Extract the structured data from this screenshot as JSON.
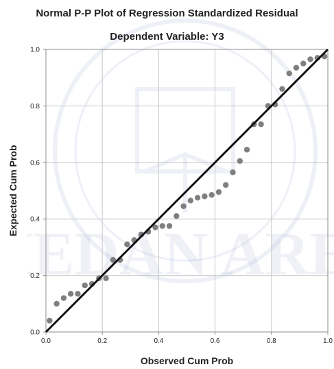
{
  "chart_data": {
    "type": "scatter",
    "title": "Normal P-P Plot of Regression Standardized Residual",
    "subtitle": "Dependent Variable: Y3",
    "xlabel": "Observed Cum Prob",
    "ylabel": "Expected Cum Prob",
    "xlim": [
      0,
      1
    ],
    "ylim": [
      0,
      1
    ],
    "x_ticks": [
      "0.0",
      "0.2",
      "0.4",
      "0.6",
      "0.8",
      "1.0"
    ],
    "y_ticks": [
      "0.0",
      "0.2",
      "0.4",
      "0.6",
      "0.8",
      "1.0"
    ],
    "grid": true,
    "legend": "none",
    "reference_line": {
      "from": [
        0,
        0
      ],
      "to": [
        1,
        1
      ]
    },
    "points": {
      "x": [
        0.013,
        0.038,
        0.063,
        0.088,
        0.113,
        0.138,
        0.163,
        0.188,
        0.213,
        0.238,
        0.263,
        0.288,
        0.313,
        0.338,
        0.363,
        0.388,
        0.413,
        0.438,
        0.463,
        0.488,
        0.513,
        0.538,
        0.563,
        0.588,
        0.613,
        0.638,
        0.663,
        0.688,
        0.713,
        0.738,
        0.763,
        0.788,
        0.813,
        0.838,
        0.863,
        0.888,
        0.913,
        0.938,
        0.963,
        0.988
      ],
      "y": [
        0.04,
        0.1,
        0.12,
        0.135,
        0.135,
        0.165,
        0.17,
        0.19,
        0.19,
        0.255,
        0.255,
        0.31,
        0.325,
        0.345,
        0.355,
        0.37,
        0.375,
        0.375,
        0.41,
        0.445,
        0.465,
        0.475,
        0.48,
        0.485,
        0.495,
        0.52,
        0.565,
        0.605,
        0.645,
        0.735,
        0.735,
        0.8,
        0.805,
        0.86,
        0.915,
        0.935,
        0.95,
        0.965,
        0.97,
        0.975
      ]
    },
    "colors": {
      "points": "#7f7f7f",
      "line": "#111111",
      "grid": "#c8c8c8",
      "frame": "#8c8c8c"
    }
  },
  "watermark_text": "MEDAN AREA"
}
